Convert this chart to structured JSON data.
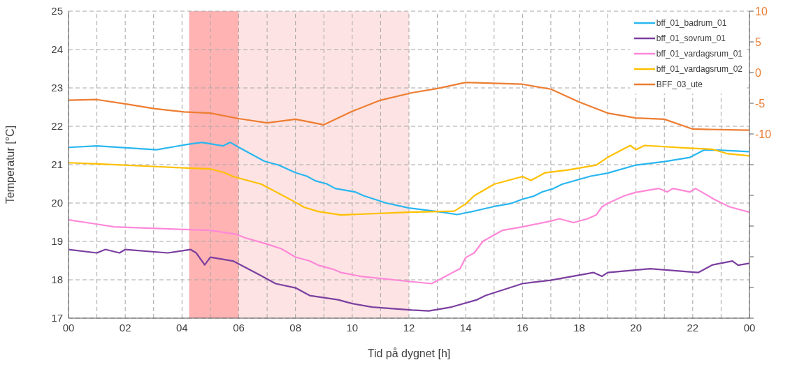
{
  "chart_data": {
    "type": "line",
    "xlabel": "Tid på dygnet [h]",
    "ylabel": "Temperatur [°C]",
    "xlim": [
      0,
      24
    ],
    "xticks": [
      {
        "value": 0,
        "label": "00"
      },
      {
        "value": 1,
        "label": null
      },
      {
        "value": 2,
        "label": "02"
      },
      {
        "value": 3,
        "label": null
      },
      {
        "value": 4,
        "label": "04"
      },
      {
        "value": 5,
        "label": null
      },
      {
        "value": 6,
        "label": "06"
      },
      {
        "value": 7,
        "label": null
      },
      {
        "value": 8,
        "label": "08"
      },
      {
        "value": 9,
        "label": null
      },
      {
        "value": 10,
        "label": "10"
      },
      {
        "value": 11,
        "label": null
      },
      {
        "value": 12,
        "label": "12"
      },
      {
        "value": 13,
        "label": null
      },
      {
        "value": 14,
        "label": "14"
      },
      {
        "value": 15,
        "label": null
      },
      {
        "value": 16,
        "label": "16"
      },
      {
        "value": 17,
        "label": null
      },
      {
        "value": 18,
        "label": "18"
      },
      {
        "value": 19,
        "label": null
      },
      {
        "value": 20,
        "label": "20"
      },
      {
        "value": 21,
        "label": null
      },
      {
        "value": 22,
        "label": "22"
      },
      {
        "value": 23,
        "label": null
      },
      {
        "value": 24,
        "label": "00"
      }
    ],
    "ylim": [
      17,
      25
    ],
    "yticks": [
      17,
      18,
      19,
      20,
      21,
      22,
      23,
      24,
      25
    ],
    "y2lim": [
      -40,
      10
    ],
    "y2ticks": [
      10,
      5,
      0,
      -5,
      -10,
      {
        "value": -15,
        "label": null
      },
      {
        "value": -20,
        "label": null
      },
      {
        "value": -25,
        "label": null
      },
      {
        "value": -30,
        "label": null
      },
      {
        "value": -35,
        "label": null
      },
      {
        "value": -40,
        "label": null
      }
    ],
    "grid": true,
    "legend": "top right",
    "line_style": "solid",
    "marker": "none",
    "bands": [
      {
        "axis": "x",
        "from": 4.25,
        "to": 6,
        "color": "#ffb3b3"
      },
      {
        "axis": "x",
        "from": 6,
        "to": 12,
        "color": "#fde3e3"
      }
    ],
    "series": [
      {
        "name": "bff_01_badrum_01",
        "color": "#29b6f0",
        "x": [
          0,
          1,
          3.1,
          4.2,
          4.7,
          5.45,
          5.7,
          6.03,
          6.9,
          7.4,
          8,
          8.4,
          8.7,
          9.1,
          9.4,
          10.1,
          10.4,
          11.2,
          12,
          13,
          13.7,
          14.3,
          15,
          15.6,
          16,
          16.4,
          16.7,
          17.1,
          17.4,
          18.4,
          19,
          20,
          21,
          21.9,
          22.4,
          22.9,
          24
        ],
        "values": [
          21.45,
          21.49,
          21.39,
          21.53,
          21.58,
          21.49,
          21.58,
          21.44,
          21.09,
          20.99,
          20.79,
          20.7,
          20.58,
          20.5,
          20.38,
          20.29,
          20.19,
          20,
          19.87,
          19.78,
          19.7,
          19.79,
          19.91,
          19.99,
          20.1,
          20.18,
          20.29,
          20.38,
          20.49,
          20.7,
          20.78,
          20.99,
          21.08,
          21.19,
          21.38,
          21.38,
          21.34
        ]
      },
      {
        "name": "bff_01_sovrum_01",
        "color": "#7b3fa0",
        "x": [
          0,
          1,
          1.3,
          1.8,
          2,
          3.5,
          4.3,
          4.5,
          4.8,
          5,
          5.8,
          6.7,
          7.3,
          8,
          8.5,
          9.5,
          10,
          10.7,
          12.1,
          12.7,
          13.5,
          14.4,
          14.7,
          16,
          17,
          18.5,
          18.8,
          19,
          20.5,
          22.2,
          22.7,
          23.4,
          23.6,
          24
        ],
        "values": [
          18.79,
          18.7,
          18.79,
          18.7,
          18.79,
          18.7,
          18.79,
          18.7,
          18.39,
          18.59,
          18.49,
          18.14,
          17.9,
          17.79,
          17.59,
          17.48,
          17.38,
          17.29,
          17.21,
          17.19,
          17.29,
          17.48,
          17.59,
          17.9,
          17.99,
          18.19,
          18.09,
          18.19,
          18.29,
          18.19,
          18.39,
          18.49,
          18.38,
          18.43
        ]
      },
      {
        "name": "bff_01_vardagsrum_01",
        "color": "#ff88d8",
        "x": [
          0,
          1,
          1.6,
          4.1,
          5,
          5.9,
          6.2,
          7,
          7.5,
          8,
          8.5,
          8.8,
          9.3,
          9.6,
          10.3,
          12.1,
          12.8,
          13.8,
          14,
          14.3,
          14.6,
          15.3,
          16,
          17,
          17.3,
          17.8,
          18.3,
          18.6,
          18.8,
          19,
          19.6,
          20,
          20.8,
          21.1,
          21.3,
          21.9,
          22.1,
          22.8,
          23.3,
          24
        ],
        "values": [
          19.56,
          19.45,
          19.38,
          19.31,
          19.29,
          19.19,
          19.1,
          18.93,
          18.81,
          18.59,
          18.49,
          18.38,
          18.28,
          18.19,
          18.09,
          17.95,
          17.9,
          18.29,
          18.58,
          18.7,
          19,
          19.29,
          19.38,
          19.53,
          19.59,
          19.49,
          19.59,
          19.69,
          19.9,
          19.99,
          20.19,
          20.28,
          20.38,
          20.29,
          20.38,
          20.29,
          20.38,
          20.08,
          19.9,
          19.76
        ]
      },
      {
        "name": "bff_01_vardagsrum_02",
        "color": "#ffc000",
        "x": [
          0,
          1,
          3.1,
          4.2,
          5,
          5.5,
          5.8,
          6.8,
          8,
          8.3,
          8.8,
          9.6,
          12,
          13.6,
          14,
          14.3,
          15,
          16,
          16.3,
          16.8,
          17.6,
          18.6,
          19,
          19.8,
          20,
          20.3,
          21.9,
          22.7,
          23.2,
          24
        ],
        "values": [
          21.05,
          21.02,
          20.95,
          20.91,
          20.89,
          20.79,
          20.69,
          20.49,
          20.02,
          19.89,
          19.78,
          19.69,
          19.76,
          19.79,
          19.98,
          20.19,
          20.49,
          20.69,
          20.59,
          20.79,
          20.86,
          20.99,
          21.19,
          21.5,
          21.39,
          21.5,
          21.43,
          21.4,
          21.29,
          21.23
        ]
      },
      {
        "name": "BFF_03_ute",
        "color": "#ed7d31",
        "axis": "y2",
        "x": [
          0,
          1,
          2,
          3.05,
          4.07,
          5,
          6,
          7,
          8,
          9,
          10,
          11,
          12.1,
          13,
          14,
          16,
          17,
          18,
          19,
          20,
          21,
          22,
          24
        ],
        "values": [
          -4.5,
          -4.4,
          -5.1,
          -5.9,
          -6.4,
          -6.6,
          -7.5,
          -8.2,
          -7.6,
          -8.5,
          -6.3,
          -4.5,
          -3.3,
          -2.6,
          -1.6,
          -1.9,
          -2.7,
          -4.8,
          -6.6,
          -7.4,
          -7.6,
          -9.2,
          -9.4
        ]
      }
    ]
  }
}
